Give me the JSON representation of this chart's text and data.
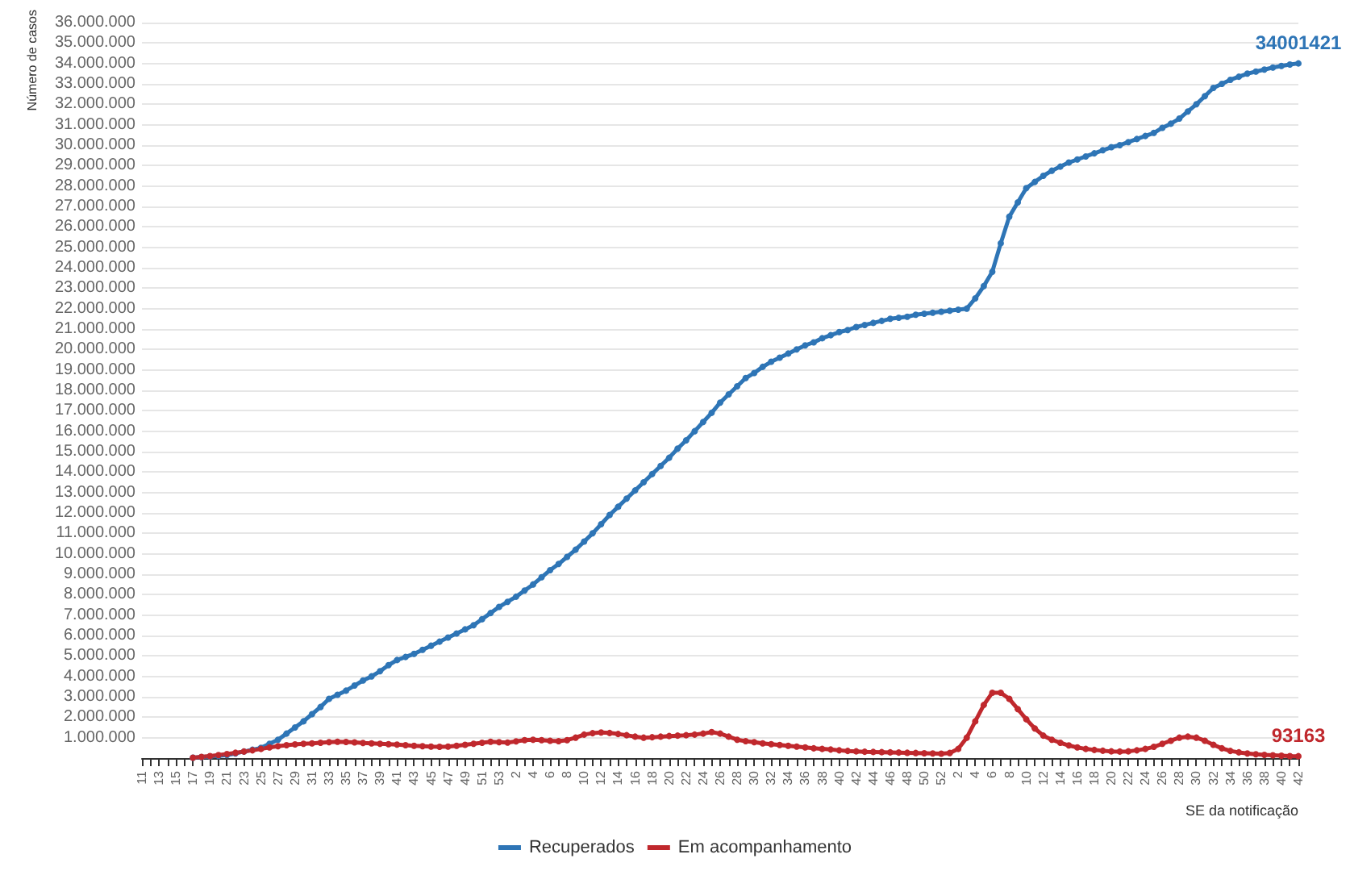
{
  "chart_data": {
    "type": "line",
    "xlabel": "SE da notificação",
    "ylabel": "Número de casos",
    "categories": [
      "11",
      null,
      "13",
      null,
      "15",
      null,
      "17",
      null,
      "19",
      null,
      "21",
      null,
      "23",
      null,
      "25",
      null,
      "27",
      null,
      "29",
      null,
      "31",
      null,
      "33",
      null,
      "35",
      null,
      "37",
      null,
      "39",
      null,
      "41",
      null,
      "43",
      null,
      "45",
      null,
      "47",
      null,
      "49",
      null,
      "51",
      null,
      "53",
      null,
      "2",
      null,
      "4",
      null,
      "6",
      null,
      "8",
      null,
      "10",
      null,
      "12",
      null,
      "14",
      null,
      "16",
      null,
      "18",
      null,
      "20",
      null,
      "22",
      null,
      "24",
      null,
      "26",
      null,
      "28",
      null,
      "30",
      null,
      "32",
      null,
      "34",
      null,
      "36",
      null,
      "38",
      null,
      "40",
      null,
      "42",
      null,
      "44",
      null,
      "46",
      null,
      "48",
      null,
      "50",
      null,
      "52",
      null,
      "2",
      null,
      "4",
      null,
      "6",
      null,
      "8",
      null,
      "10",
      null,
      "12",
      null,
      "14",
      null,
      "16",
      null,
      "18",
      null,
      "20",
      null,
      "22",
      null,
      "24",
      null,
      "26",
      null,
      "28",
      null,
      "30",
      null,
      "32",
      null,
      "34",
      null,
      "36",
      null,
      "38",
      null,
      "40",
      null,
      "42"
    ],
    "series": [
      {
        "name": "Recuperados",
        "color": "#2e75b6",
        "values": [
          null,
          null,
          null,
          null,
          null,
          null,
          20000,
          50000,
          80000,
          110000,
          150000,
          230000,
          320000,
          410000,
          500000,
          700000,
          900000,
          1200000,
          1500000,
          1800000,
          2150000,
          2500000,
          2900000,
          3100000,
          3300000,
          3550000,
          3800000,
          4000000,
          4250000,
          4550000,
          4800000,
          4950000,
          5100000,
          5300000,
          5500000,
          5700000,
          5900000,
          6100000,
          6300000,
          6500000,
          6800000,
          7100000,
          7400000,
          7650000,
          7900000,
          8200000,
          8500000,
          8850000,
          9200000,
          9500000,
          9850000,
          10200000,
          10600000,
          11000000,
          11450000,
          11900000,
          12300000,
          12700000,
          13100000,
          13500000,
          13900000,
          14300000,
          14700000,
          15150000,
          15550000,
          16000000,
          16450000,
          16900000,
          17400000,
          17800000,
          18200000,
          18600000,
          18850000,
          19150000,
          19400000,
          19600000,
          19800000,
          20000000,
          20200000,
          20350000,
          20550000,
          20700000,
          20850000,
          20950000,
          21100000,
          21200000,
          21300000,
          21400000,
          21500000,
          21550000,
          21600000,
          21700000,
          21750000,
          21800000,
          21850000,
          21900000,
          21950000,
          22000000,
          22500000,
          23100000,
          23800000,
          25200000,
          26500000,
          27200000,
          27900000,
          28200000,
          28500000,
          28750000,
          28950000,
          29150000,
          29300000,
          29450000,
          29600000,
          29750000,
          29900000,
          30000000,
          30150000,
          30300000,
          30450000,
          30600000,
          30850000,
          31050000,
          31300000,
          31650000,
          32000000,
          32400000,
          32800000,
          33000000,
          33200000,
          33350000,
          33500000,
          33600000,
          33700000,
          33800000,
          33880000,
          33950000,
          34001421
        ],
        "value_labels": [
          null,
          null,
          null,
          null,
          null,
          null,
          null,
          null,
          null,
          null,
          null,
          null,
          null,
          null,
          null,
          null,
          null,
          null,
          null,
          null,
          null,
          null,
          null,
          null,
          null,
          null,
          null,
          null,
          null,
          null,
          null,
          null,
          null,
          null,
          null,
          null,
          null,
          null,
          null,
          null,
          null,
          null,
          null,
          null,
          null,
          null,
          null,
          null,
          null,
          null,
          null,
          null,
          null,
          null,
          null,
          null,
          null,
          null,
          null,
          null,
          null,
          null,
          null,
          null,
          null,
          null,
          null,
          null,
          null,
          null,
          null,
          null,
          null,
          null,
          null,
          null,
          null,
          null,
          null,
          null,
          null,
          null,
          null,
          null,
          null,
          null,
          null,
          null,
          null,
          null,
          null,
          null,
          null,
          null,
          null,
          null,
          null,
          null,
          null,
          null,
          null,
          null,
          null,
          null,
          null,
          null,
          null,
          null,
          null,
          null,
          null,
          null,
          null,
          null,
          null,
          null,
          null,
          null,
          null,
          null,
          null,
          null,
          null,
          null,
          null,
          null,
          null,
          null,
          null,
          null,
          null,
          null,
          null,
          null,
          null,
          null,
          "34001421"
        ]
      },
      {
        "name": "Em acompanhamento",
        "color": "#c0282d",
        "values": [
          null,
          null,
          null,
          null,
          null,
          null,
          20000,
          60000,
          100000,
          150000,
          200000,
          260000,
          320000,
          380000,
          450000,
          520000,
          580000,
          630000,
          670000,
          700000,
          720000,
          750000,
          780000,
          800000,
          790000,
          770000,
          740000,
          720000,
          700000,
          680000,
          660000,
          630000,
          600000,
          580000,
          560000,
          550000,
          560000,
          600000,
          650000,
          700000,
          750000,
          800000,
          780000,
          760000,
          820000,
          880000,
          900000,
          880000,
          850000,
          830000,
          880000,
          1000000,
          1150000,
          1220000,
          1250000,
          1230000,
          1180000,
          1120000,
          1050000,
          1000000,
          1020000,
          1050000,
          1080000,
          1100000,
          1120000,
          1150000,
          1200000,
          1270000,
          1200000,
          1050000,
          900000,
          830000,
          780000,
          720000,
          680000,
          640000,
          600000,
          560000,
          520000,
          480000,
          450000,
          420000,
          380000,
          350000,
          330000,
          310000,
          300000,
          290000,
          280000,
          270000,
          260000,
          250000,
          240000,
          230000,
          220000,
          250000,
          450000,
          1000000,
          1800000,
          2600000,
          3200000,
          3200000,
          2900000,
          2400000,
          1900000,
          1450000,
          1100000,
          900000,
          750000,
          620000,
          520000,
          450000,
          400000,
          360000,
          330000,
          320000,
          330000,
          380000,
          450000,
          550000,
          700000,
          850000,
          1000000,
          1050000,
          1000000,
          850000,
          650000,
          480000,
          350000,
          280000,
          230000,
          190000,
          160000,
          140000,
          120000,
          100000,
          93163
        ],
        "value_labels": [
          null,
          null,
          null,
          null,
          null,
          null,
          null,
          null,
          null,
          null,
          null,
          null,
          null,
          null,
          null,
          null,
          null,
          null,
          null,
          null,
          null,
          null,
          null,
          null,
          null,
          null,
          null,
          null,
          null,
          null,
          null,
          null,
          null,
          null,
          null,
          null,
          null,
          null,
          null,
          null,
          null,
          null,
          null,
          null,
          null,
          null,
          null,
          null,
          null,
          null,
          null,
          null,
          null,
          null,
          null,
          null,
          null,
          null,
          null,
          null,
          null,
          null,
          null,
          null,
          null,
          null,
          null,
          null,
          null,
          null,
          null,
          null,
          null,
          null,
          null,
          null,
          null,
          null,
          null,
          null,
          null,
          null,
          null,
          null,
          null,
          null,
          null,
          null,
          null,
          null,
          null,
          null,
          null,
          null,
          null,
          null,
          null,
          null,
          null,
          null,
          null,
          null,
          null,
          null,
          null,
          null,
          null,
          null,
          null,
          null,
          null,
          null,
          null,
          null,
          null,
          null,
          null,
          null,
          null,
          null,
          null,
          null,
          null,
          null,
          null,
          null,
          null,
          null,
          null,
          null,
          null,
          null,
          null,
          null,
          null,
          null,
          "93163"
        ]
      }
    ],
    "ylim": [
      0,
      36000000
    ],
    "yticks": [
      {
        "value": 0,
        "label": null
      },
      {
        "value": 1000000,
        "label": "1.000.000"
      },
      {
        "value": 2000000,
        "label": "2.000.000"
      },
      {
        "value": 3000000,
        "label": "3.000.000"
      },
      {
        "value": 4000000,
        "label": "4.000.000"
      },
      {
        "value": 5000000,
        "label": "5.000.000"
      },
      {
        "value": 6000000,
        "label": "6.000.000"
      },
      {
        "value": 7000000,
        "label": "7.000.000"
      },
      {
        "value": 8000000,
        "label": "8.000.000"
      },
      {
        "value": 9000000,
        "label": "9.000.000"
      },
      {
        "value": 10000000,
        "label": "10.000.000"
      },
      {
        "value": 11000000,
        "label": "11.000.000"
      },
      {
        "value": 12000000,
        "label": "12.000.000"
      },
      {
        "value": 13000000,
        "label": "13.000.000"
      },
      {
        "value": 14000000,
        "label": "14.000.000"
      },
      {
        "value": 15000000,
        "label": "15.000.000"
      },
      {
        "value": 16000000,
        "label": "16.000.000"
      },
      {
        "value": 17000000,
        "label": "17.000.000"
      },
      {
        "value": 18000000,
        "label": "18.000.000"
      },
      {
        "value": 19000000,
        "label": "19.000.000"
      },
      {
        "value": 20000000,
        "label": "20.000.000"
      },
      {
        "value": 21000000,
        "label": "21.000.000"
      },
      {
        "value": 22000000,
        "label": "22.000.000"
      },
      {
        "value": 23000000,
        "label": "23.000.000"
      },
      {
        "value": 24000000,
        "label": "24.000.000"
      },
      {
        "value": 25000000,
        "label": "25.000.000"
      },
      {
        "value": 26000000,
        "label": "26.000.000"
      },
      {
        "value": 27000000,
        "label": "27.000.000"
      },
      {
        "value": 28000000,
        "label": "28.000.000"
      },
      {
        "value": 29000000,
        "label": "29.000.000"
      },
      {
        "value": 30000000,
        "label": "30.000.000"
      },
      {
        "value": 31000000,
        "label": "31.000.000"
      },
      {
        "value": 32000000,
        "label": "32.000.000"
      },
      {
        "value": 33000000,
        "label": "33.000.000"
      },
      {
        "value": 34000000,
        "label": "34.000.000"
      },
      {
        "value": 35000000,
        "label": "35.000.000"
      },
      {
        "value": 36000000,
        "label": "36.000.000"
      }
    ],
    "grid": "y",
    "legend": "bottom",
    "marker": "circle",
    "line_style": "solid"
  }
}
